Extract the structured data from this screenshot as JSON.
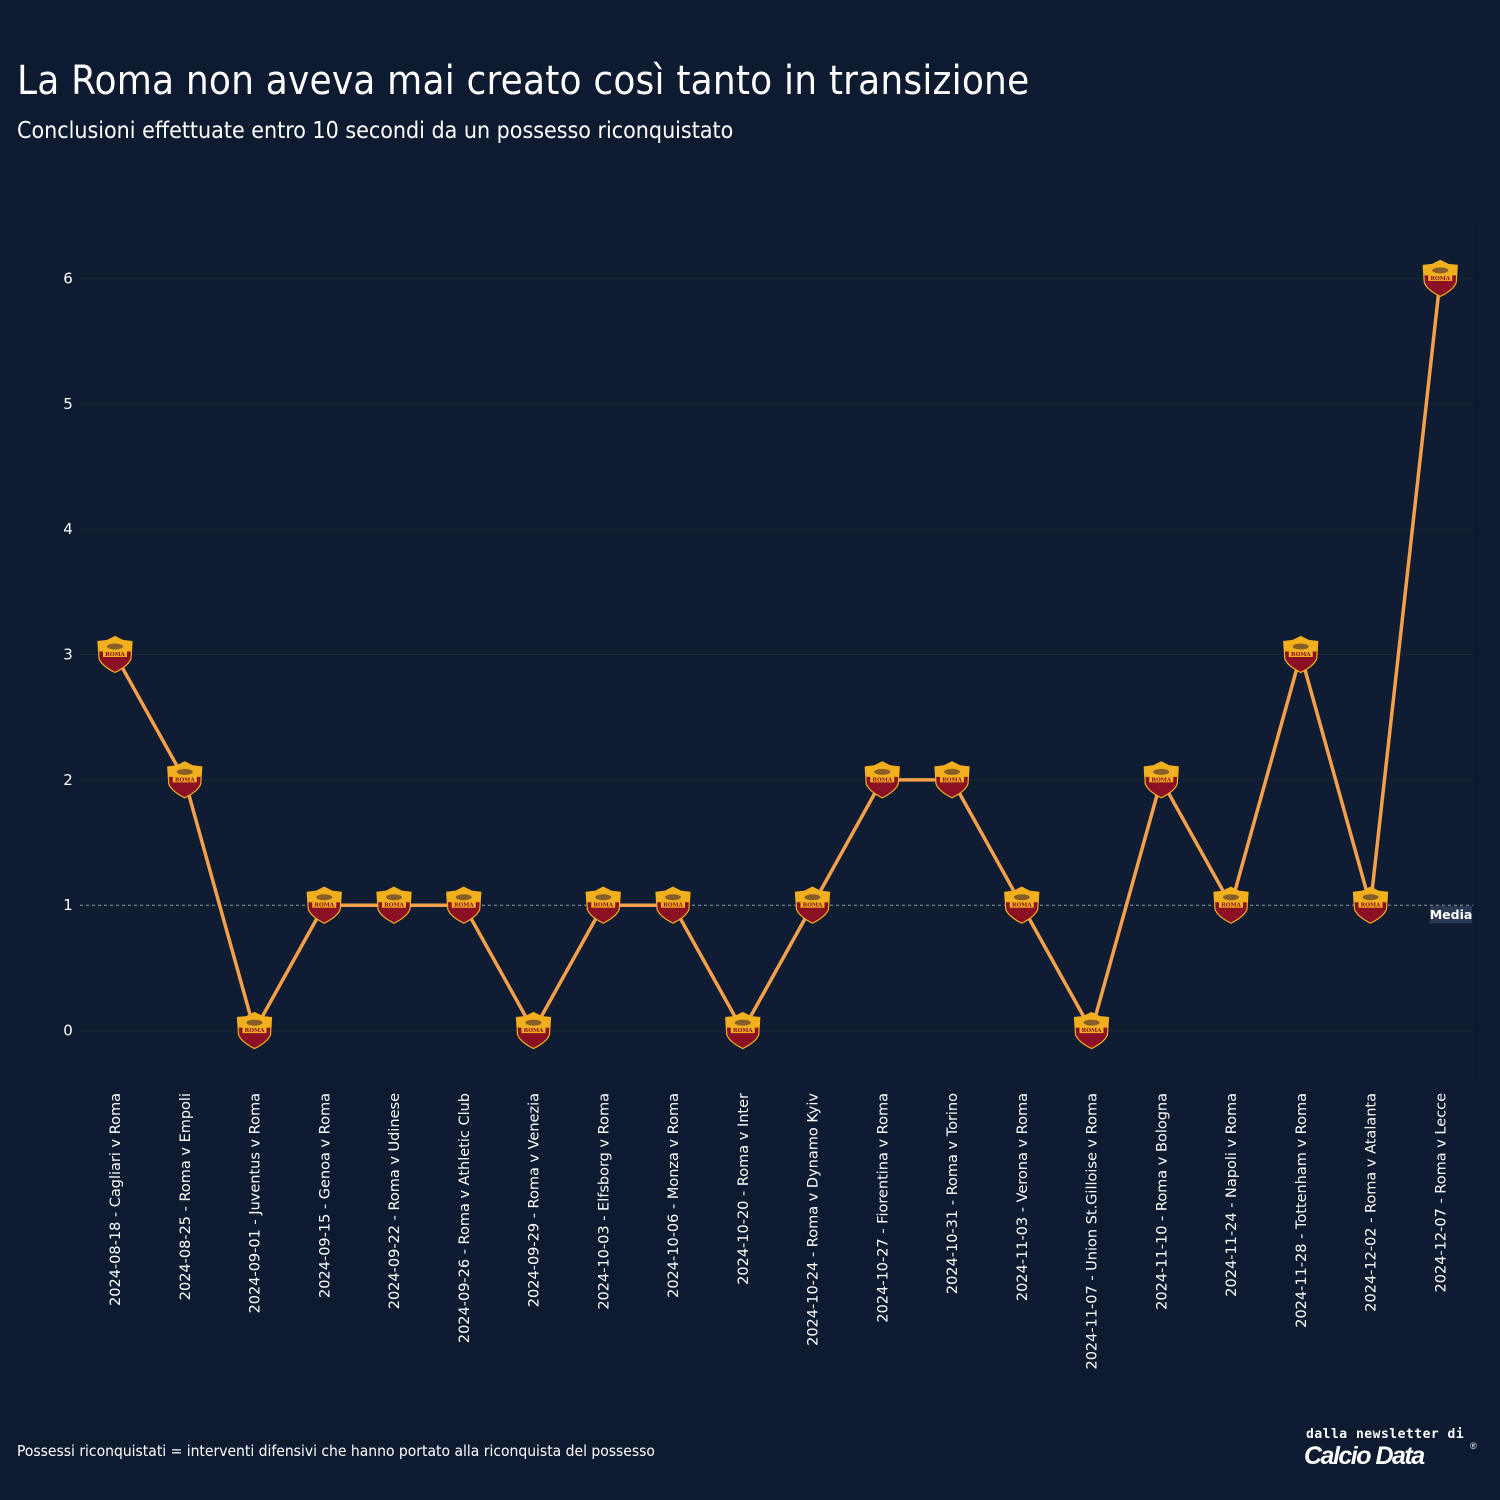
{
  "header": {
    "title": "La Roma non aveva mai creato così tanto in transizione",
    "subtitle": "Conclusioni effettuate entro 10 secondi da un possesso riconquistato"
  },
  "footer": {
    "note": "Possessi riconquistati = interventi difensivi che hanno portato alla riconquista del possesso",
    "brand_tagline": "dalla newsletter di",
    "brand_name": "Calcio Data",
    "brand_mark": "®"
  },
  "chart_data": {
    "type": "line",
    "title": "La Roma non aveva mai creato così tanto in transizione",
    "subtitle": "Conclusioni effettuate entro 10 secondi da un possesso riconquistato",
    "xlabel": "",
    "ylabel": "",
    "ylim": [
      -0.45,
      6.45
    ],
    "yticks": [
      0,
      1,
      2,
      3,
      4,
      5,
      6
    ],
    "grid": true,
    "categories": [
      "2024-08-18 - Cagliari v Roma",
      "2024-08-25 - Roma v Empoli",
      "2024-09-01 - Juventus v Roma",
      "2024-09-15 - Genoa v Roma",
      "2024-09-22 - Roma v Udinese",
      "2024-09-26 - Roma v Athletic Club",
      "2024-09-29 - Roma v Venezia",
      "2024-10-03 - Elfsborg v Roma",
      "2024-10-06 - Monza v Roma",
      "2024-10-20 - Roma v Inter",
      "2024-10-24 - Roma v Dynamo Kyiv",
      "2024-10-27 - Fiorentina v Roma",
      "2024-10-31 - Roma v Torino",
      "2024-11-03 - Verona v Roma",
      "2024-11-07 - Union St.Gilloise v Roma",
      "2024-11-10 - Roma v Bologna",
      "2024-11-24 - Napoli v Roma",
      "2024-11-28 - Tottenham v Roma",
      "2024-12-02 - Roma v Atalanta",
      "2024-12-07 - Roma v Lecce"
    ],
    "values": [
      3,
      2,
      0,
      1,
      1,
      1,
      0,
      1,
      1,
      0,
      1,
      2,
      2,
      1,
      0,
      2,
      1,
      3,
      1,
      6
    ],
    "reference_line": {
      "label": "Media",
      "value": 1
    },
    "colors": {
      "background": "#0e1a2f",
      "line": "#f5a04a",
      "grid": "#16283a",
      "reference": "#8a97a8",
      "marker_gold": "#f2b01e",
      "marker_red": "#8b1023"
    },
    "marker_icon": "as-roma-crest-icon",
    "marker_text": "ROMA"
  }
}
